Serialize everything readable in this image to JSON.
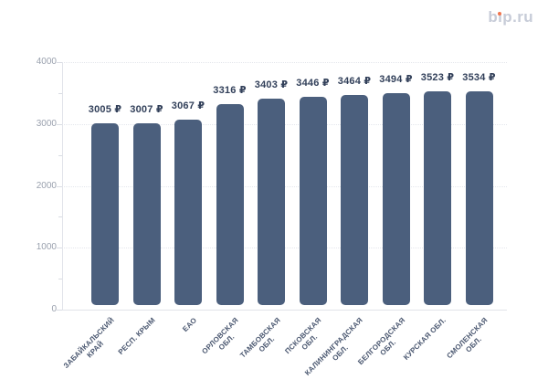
{
  "logo": {
    "text": "bip.ru",
    "color": "#c7ccd8",
    "i_dot_color": "#f0764f"
  },
  "chart_data": {
    "type": "bar",
    "title": "",
    "xlabel": "",
    "ylabel": "",
    "currency": "₽",
    "categories": [
      "ЗАБАЙКАЛЬСКИЙ КРАЙ",
      "РЕСП. КРЫМ",
      "ЕАО",
      "ОРЛОВСКАЯ ОБЛ.",
      "ТАМБОВСКАЯ ОБЛ.",
      "ПСКОВСКАЯ ОБЛ.",
      "КАЛИНИНГРАДСКАЯ ОБЛ.",
      "БЕЛГОРОДСКАЯ ОБЛ.",
      "КУРСКАЯ ОБЛ.",
      "СМОЛЕНСКАЯ ОБЛ."
    ],
    "category_lines": [
      [
        "ЗАБАЙКАЛЬСКИЙ",
        "КРАЙ"
      ],
      [
        "РЕСП. КРЫМ"
      ],
      [
        "ЕАО"
      ],
      [
        "ОРЛОВСКАЯ",
        "ОБЛ."
      ],
      [
        "ТАМБОВСКАЯ",
        "ОБЛ."
      ],
      [
        "ПСКОВСКАЯ",
        "ОБЛ."
      ],
      [
        "КАЛИНИНГРАДСКАЯ",
        "ОБЛ."
      ],
      [
        "БЕЛГОРОДСКАЯ",
        "ОБЛ."
      ],
      [
        "КУРСКАЯ ОБЛ."
      ],
      [
        "СМОЛЕНСКАЯ",
        "ОБЛ."
      ]
    ],
    "values": [
      3005,
      3007,
      3067,
      3316,
      3403,
      3446,
      3464,
      3494,
      3523,
      3534
    ],
    "value_labels": [
      "3005 ₽",
      "3007 ₽",
      "3067 ₽",
      "3316 ₽",
      "3403 ₽",
      "3446 ₽",
      "3464 ₽",
      "3494 ₽",
      "3523 ₽",
      "3534 ₽"
    ],
    "ylim": [
      0,
      4000
    ],
    "yticks": [
      0,
      1000,
      2000,
      3000,
      4000
    ],
    "yticks_minor": [
      500,
      1500,
      2500,
      3500
    ],
    "grid": "horizontal-dotted",
    "legend": "none",
    "bar_color": "#4b5f7d",
    "value_label_color": "#32405a",
    "category_label_color": "#4a5770",
    "ytick_label_color": "#9aa1ae"
  }
}
